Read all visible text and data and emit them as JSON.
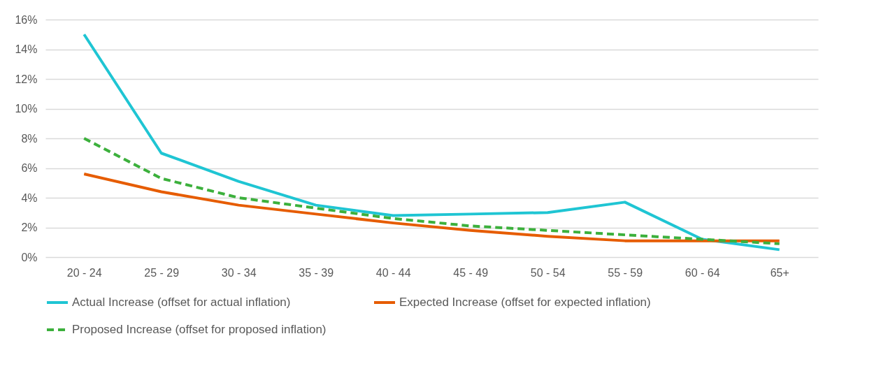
{
  "chart_data": {
    "type": "line",
    "categories": [
      "20 - 24",
      "25 - 29",
      "30 - 34",
      "35 - 39",
      "40 - 44",
      "45 - 49",
      "50 - 54",
      "55 - 59",
      "60 - 64",
      "65+"
    ],
    "series": [
      {
        "name": "Actual Increase (offset for actual inflation)",
        "color": "#1fc5d3",
        "line_style": "solid",
        "values": [
          15.0,
          7.0,
          5.1,
          3.5,
          2.8,
          2.9,
          3.0,
          3.7,
          1.2,
          0.5
        ]
      },
      {
        "name": "Expected Increase (offset for expected inflation)",
        "color": "#e65c00",
        "line_style": "solid",
        "values": [
          5.6,
          4.4,
          3.5,
          2.9,
          2.3,
          1.8,
          1.4,
          1.1,
          1.1,
          1.1
        ]
      },
      {
        "name": "Proposed Increase (offset for proposed inflation)",
        "color": "#3cb03c",
        "line_style": "dashed",
        "values": [
          8.0,
          5.3,
          4.0,
          3.3,
          2.6,
          2.1,
          1.8,
          1.5,
          1.2,
          0.9
        ]
      }
    ],
    "ylim": [
      0,
      16
    ],
    "yticks": [
      {
        "value": 0,
        "label": "0%"
      },
      {
        "value": 2,
        "label": "2%"
      },
      {
        "value": 4,
        "label": "4%"
      },
      {
        "value": 6,
        "label": "6%"
      },
      {
        "value": 8,
        "label": "8%"
      },
      {
        "value": 10,
        "label": "10%"
      },
      {
        "value": 12,
        "label": "12%"
      },
      {
        "value": 14,
        "label": "14%"
      },
      {
        "value": 16,
        "label": "16%"
      }
    ],
    "grid": "y",
    "legend": "bottom",
    "marker": "none"
  }
}
